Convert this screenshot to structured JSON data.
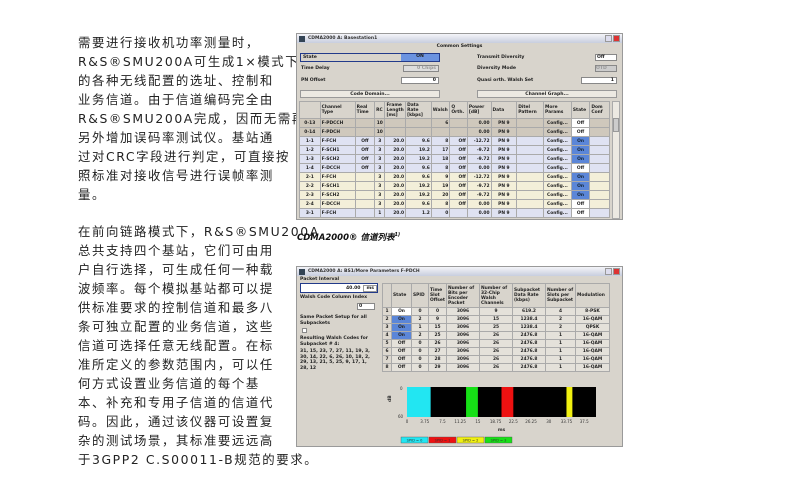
{
  "paragraph1": [
    "需要进行接收机功率测量时，",
    "R&S®SMU200A可生成1×模式下",
    "的各种无线配置的选址、控制和",
    "业务信道。由于信道编码完全由",
    "R&S®SMU200A完成，因而无需再",
    "另外增加误码率测试仪。基站通",
    "过对CRC字段进行判定，可直接按",
    "照标准对接收信号进行误帧率测",
    "量。"
  ],
  "paragraph2": [
    "在前向链路模式下，R&S®SMU200A",
    "总共支持四个基站，它们可由用",
    "户自行选择，可生成任何一种载",
    "波频率。每个模拟基站都可以提",
    "供标准要求的控制信道和最多八",
    "条可独立配置的业务信道，这些",
    "信道可选择任意无线配置。在标",
    "准所定义的参数范围内，可以任",
    "何方式设置业务信道的每个基",
    "本、补充和专用子信道的信道代",
    "码。因此，通过该仪器可设置复",
    "杂的测试场景，其标准要远远高",
    "于3GPP2 C.S00011-B规范的要求。"
  ],
  "caption": {
    "text": "CDMA2000® 信道列表",
    "sup": "1)"
  },
  "window1": {
    "title": "CDMA2000 A: Basestation1",
    "section": "Common Settings",
    "state_label": "State",
    "state_value": "ON",
    "time_delay_label": "Time Delay",
    "time_delay_value": "0",
    "time_delay_unit": "Chips",
    "pn_offset_label": "PN Offset",
    "pn_offset_value": "0",
    "transmit_diversity_label": "Transmit Diversity",
    "transmit_diversity_value": "Off",
    "diversity_mode_label": "Diversity Mode",
    "diversity_mode_value": "OTD",
    "quasi_walsh_label": "Quasi orth. Walsh Set",
    "quasi_walsh_value": "1",
    "code_domain_button": "Code Domain...",
    "channel_graph_button": "Channel Graph...",
    "columns": [
      "",
      "Channel Type",
      "Real Time",
      "RC",
      "Frame Length [ms]",
      "Data Rate [kbps]",
      "Walsh",
      "Q Orth.",
      "Power [dB]",
      "Data",
      "Ditel Pattern",
      "More Params",
      "State",
      "Dom Conf"
    ],
    "rows": [
      [
        "0-13",
        "F-PDCCH",
        "",
        "10",
        "",
        "",
        "6",
        "",
        "0.00",
        "PN 9",
        "",
        "Config...",
        "Off",
        ""
      ],
      [
        "0-14",
        "F-PDCH",
        "",
        "10",
        "",
        "",
        "",
        "",
        "0.00",
        "PN 9",
        "",
        "Config...",
        "Off",
        ""
      ],
      [
        "1-1",
        "F-FCH",
        "Off",
        "3",
        "20.0",
        "9.6",
        "8",
        "Off",
        "-12.72",
        "PN 9",
        "",
        "Config...",
        "On",
        ""
      ],
      [
        "1-2",
        "F-SCH1",
        "Off",
        "3",
        "20.0",
        "19.2",
        "17",
        "Off",
        "-9.72",
        "PN 9",
        "",
        "Config...",
        "On",
        ""
      ],
      [
        "1-3",
        "F-SCH2",
        "Off",
        "3",
        "20.0",
        "19.2",
        "18",
        "Off",
        "-9.72",
        "PN 9",
        "",
        "Config...",
        "On",
        ""
      ],
      [
        "1-4",
        "F-DCCH",
        "Off",
        "3",
        "20.0",
        "9.6",
        "8",
        "Off",
        "0.00",
        "PN 9",
        "",
        "Config...",
        "Off",
        ""
      ],
      [
        "2-1",
        "F-FCH",
        "",
        "3",
        "20.0",
        "9.6",
        "9",
        "Off",
        "-12.72",
        "PN 9",
        "",
        "Config...",
        "On",
        ""
      ],
      [
        "2-2",
        "F-SCH1",
        "",
        "3",
        "20.0",
        "19.2",
        "19",
        "Off",
        "-9.72",
        "PN 9",
        "",
        "Config...",
        "On",
        ""
      ],
      [
        "2-3",
        "F-SCH2",
        "",
        "3",
        "20.0",
        "19.2",
        "20",
        "Off",
        "-9.72",
        "PN 9",
        "",
        "Config...",
        "On",
        ""
      ],
      [
        "2-4",
        "F-DCCH",
        "",
        "3",
        "20.0",
        "9.6",
        "8",
        "Off",
        "0.00",
        "PN 9",
        "",
        "Config...",
        "Off",
        ""
      ],
      [
        "3-1",
        "F-FCH",
        "",
        "1",
        "20.0",
        "1.2",
        "0",
        "",
        "0.00",
        "PN 9",
        "",
        "Config...",
        "Off",
        ""
      ]
    ]
  },
  "window2": {
    "title": "CDMA2000 A: BS1/More Parameters F-PDCH",
    "packet_interval_label": "Packet Interval",
    "packet_interval_value": "40.00",
    "packet_interval_unit": "ms",
    "walsh_index_label": "Walsh Code Column Index",
    "walsh_index_value": "0",
    "same_setup_label": "Same Packet Setup for all Subpackets",
    "resulting_label": "Resulting Walsh Codes for Subpacket # 4:",
    "resulting_codes": "31, 15, 23, 7, 27, 11, 19, 3, 30, 14, 22, 6, 26, 10, 18, 2, 29, 13, 21, 5, 25, 9, 17, 1, 28, 12",
    "columns": [
      "",
      "State",
      "SPID",
      "Time Slot Offset",
      "Number of Bits per Encoder Packet",
      "Number of 32-Chip Walsh Channels",
      "Subpacket Data Rate (kbps)",
      "Number of Slots per Subpacket",
      "Modulation"
    ],
    "rows": [
      [
        "1",
        "On",
        "0",
        "0",
        "3096",
        "9",
        "619.2",
        "4",
        "8-PSK"
      ],
      [
        "2",
        "On",
        "2",
        "9",
        "3096",
        "15",
        "1238.4",
        "2",
        "16-QAM"
      ],
      [
        "3",
        "On",
        "1",
        "15",
        "3096",
        "25",
        "1238.4",
        "2",
        "QPSK"
      ],
      [
        "4",
        "On",
        "2",
        "25",
        "3096",
        "26",
        "2476.8",
        "1",
        "16-QAM"
      ],
      [
        "5",
        "Off",
        "0",
        "26",
        "3096",
        "26",
        "2476.8",
        "1",
        "16-QAM"
      ],
      [
        "6",
        "Off",
        "0",
        "27",
        "3096",
        "26",
        "2476.8",
        "1",
        "16-QAM"
      ],
      [
        "7",
        "Off",
        "0",
        "28",
        "3096",
        "26",
        "2476.8",
        "1",
        "16-QAM"
      ],
      [
        "8",
        "Off",
        "0",
        "29",
        "3096",
        "26",
        "2476.8",
        "1",
        "16-QAM"
      ]
    ],
    "graph": {
      "ylabel": "dB",
      "ytop": "0",
      "ybottom": "60",
      "xlabel": "ms",
      "xticks": [
        "0",
        "3.75",
        "7.5",
        "11.25",
        "15",
        "18.75",
        "22.5",
        "26.25",
        "30",
        "33.75",
        "37.5"
      ],
      "bars": [
        {
          "start": 0,
          "end": 5,
          "color": "#22e6f2"
        },
        {
          "start": 12.5,
          "end": 15,
          "color": "#16e016"
        },
        {
          "start": 20,
          "end": 22.5,
          "color": "#ee1111"
        },
        {
          "start": 33.75,
          "end": 35,
          "color": "#f0f010"
        }
      ],
      "xmax": 40,
      "legend": [
        {
          "label": "SPID = 0",
          "color": "#22e6f2"
        },
        {
          "label": "SPID = 1",
          "color": "#ee1111"
        },
        {
          "label": "SPID = 2",
          "color": "#f0f010"
        },
        {
          "label": "SPID = 3",
          "color": "#16e016"
        }
      ]
    }
  }
}
